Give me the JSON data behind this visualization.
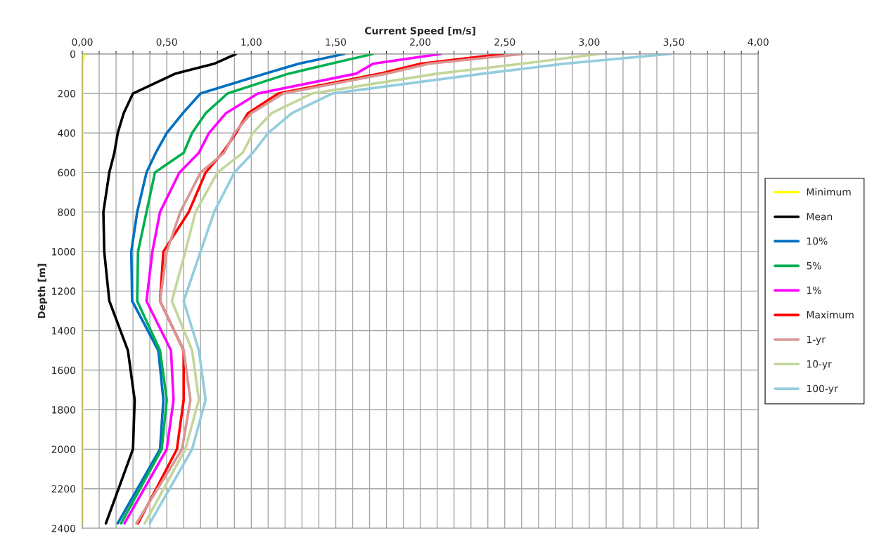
{
  "chart_data": {
    "type": "line",
    "orientation": "horizontal",
    "xlabel": "Current Speed [m/s]",
    "ylabel": "Depth [m]",
    "x": [
      0,
      50,
      100,
      200,
      300,
      400,
      500,
      600,
      800,
      1000,
      1250,
      1500,
      1750,
      2000,
      2375
    ],
    "xlim": [
      0,
      4
    ],
    "xticks": [
      {
        "value": 0,
        "label": "0,00"
      },
      {
        "value": 0.1,
        "label": null
      },
      {
        "value": 0.2,
        "label": null
      },
      {
        "value": 0.3,
        "label": null
      },
      {
        "value": 0.4,
        "label": null
      },
      {
        "value": 0.5,
        "label": "0,50"
      },
      {
        "value": 0.6,
        "label": null
      },
      {
        "value": 0.7,
        "label": null
      },
      {
        "value": 0.8,
        "label": null
      },
      {
        "value": 0.9,
        "label": null
      },
      {
        "value": 1,
        "label": "1,00"
      },
      {
        "value": 1.1,
        "label": null
      },
      {
        "value": 1.2,
        "label": null
      },
      {
        "value": 1.3,
        "label": null
      },
      {
        "value": 1.4,
        "label": null
      },
      {
        "value": 1.5,
        "label": "1,50"
      },
      {
        "value": 1.6,
        "label": null
      },
      {
        "value": 1.7,
        "label": null
      },
      {
        "value": 1.8,
        "label": null
      },
      {
        "value": 1.9,
        "label": null
      },
      {
        "value": 2,
        "label": "2,00"
      },
      {
        "value": 2.1,
        "label": null
      },
      {
        "value": 2.2,
        "label": null
      },
      {
        "value": 2.3,
        "label": null
      },
      {
        "value": 2.4,
        "label": null
      },
      {
        "value": 2.5,
        "label": "2,50"
      },
      {
        "value": 2.6,
        "label": null
      },
      {
        "value": 2.7,
        "label": null
      },
      {
        "value": 2.8,
        "label": null
      },
      {
        "value": 2.9,
        "label": null
      },
      {
        "value": 3,
        "label": "3,00"
      },
      {
        "value": 3.1,
        "label": null
      },
      {
        "value": 3.2,
        "label": null
      },
      {
        "value": 3.3,
        "label": null
      },
      {
        "value": 3.4,
        "label": null
      },
      {
        "value": 3.5,
        "label": "3,50"
      },
      {
        "value": 3.6,
        "label": null
      },
      {
        "value": 3.7,
        "label": null
      },
      {
        "value": 3.8,
        "label": null
      },
      {
        "value": 3.9,
        "label": null
      },
      {
        "value": 4,
        "label": "4,00"
      }
    ],
    "ylim": [
      2400,
      0
    ],
    "yticks": [
      0,
      200,
      400,
      600,
      800,
      1000,
      1200,
      1400,
      1600,
      1800,
      2000,
      2200,
      2400
    ],
    "grid": true,
    "legend": "right",
    "marker": "none",
    "line_style": "solid",
    "series": [
      {
        "name": "Minimum",
        "color": "#ffff00",
        "values": [
          0.01,
          0,
          0,
          0,
          0,
          0,
          0,
          0,
          0,
          0,
          0,
          0,
          0,
          0,
          0
        ]
      },
      {
        "name": "Mean",
        "color": "#000000",
        "values": [
          0.91,
          0.78,
          0.55,
          0.3,
          0.245,
          0.21,
          0.19,
          0.16,
          0.125,
          0.13,
          0.16,
          0.27,
          0.31,
          0.3,
          0.14
        ]
      },
      {
        "name": "10%",
        "color": "#0070c0",
        "values": [
          1.55,
          1.28,
          1.08,
          0.7,
          0.595,
          0.5,
          0.435,
          0.38,
          0.325,
          0.29,
          0.295,
          0.45,
          0.48,
          0.46,
          0.21
        ]
      },
      {
        "name": "5%",
        "color": "#00b050",
        "values": [
          1.72,
          1.47,
          1.22,
          0.86,
          0.73,
          0.65,
          0.6,
          0.43,
          0.38,
          0.33,
          0.325,
          0.46,
          0.5,
          0.47,
          0.23
        ]
      },
      {
        "name": "1%",
        "color": "#ff00ff",
        "values": [
          2.12,
          1.72,
          1.62,
          1.04,
          0.85,
          0.75,
          0.69,
          0.575,
          0.46,
          0.415,
          0.38,
          0.525,
          0.54,
          0.5,
          0.25
        ]
      },
      {
        "name": "Maximum",
        "color": "#ff0000",
        "values": [
          2.49,
          2.0,
          1.76,
          1.16,
          0.98,
          0.91,
          0.83,
          0.73,
          0.63,
          0.48,
          0.46,
          0.6,
          0.6,
          0.56,
          0.33
        ]
      },
      {
        "name": "1-yr",
        "color": "#d99694",
        "values": [
          2.61,
          2.05,
          1.8,
          1.19,
          1.0,
          0.9,
          0.84,
          0.7,
          0.58,
          0.5,
          0.46,
          0.6,
          0.64,
          0.59,
          0.32
        ]
      },
      {
        "name": "10-yr",
        "color": "#c3d69b",
        "values": [
          3.06,
          2.6,
          2.1,
          1.36,
          1.12,
          1.01,
          0.95,
          0.8,
          0.67,
          0.61,
          0.53,
          0.65,
          0.69,
          0.61,
          0.37
        ]
      },
      {
        "name": "100-yr",
        "color": "#93cddd",
        "values": [
          3.48,
          2.85,
          2.37,
          1.48,
          1.24,
          1.1,
          1.01,
          0.9,
          0.78,
          0.7,
          0.6,
          0.69,
          0.73,
          0.65,
          0.4
        ]
      }
    ]
  }
}
